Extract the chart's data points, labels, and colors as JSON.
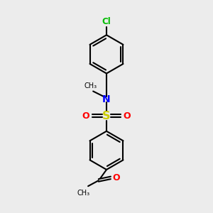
{
  "background_color": "#ececec",
  "bond_color": "#000000",
  "cl_color": "#00bb00",
  "n_color": "#0000ff",
  "s_color": "#cccc00",
  "o_color": "#ff0000",
  "figsize": [
    3.0,
    3.0
  ],
  "dpi": 100,
  "xlim": [
    0,
    10
  ],
  "ylim": [
    0,
    10
  ]
}
